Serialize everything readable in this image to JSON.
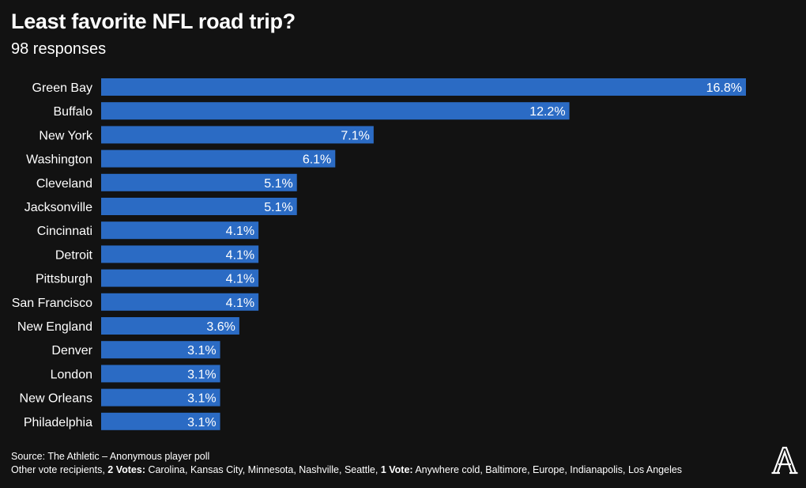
{
  "chart_data": {
    "type": "bar",
    "orientation": "horizontal",
    "title": "Least favorite NFL road trip?",
    "subtitle": "98 responses",
    "categories": [
      "Green Bay",
      "Buffalo",
      "New York",
      "Washington",
      "Cleveland",
      "Jacksonville",
      "Cincinnati",
      "Detroit",
      "Pittsburgh",
      "San Francisco",
      "New England",
      "Denver",
      "London",
      "New Orleans",
      "Philadelphia"
    ],
    "values": [
      16.8,
      12.2,
      7.1,
      6.1,
      5.1,
      5.1,
      4.1,
      4.1,
      4.1,
      4.1,
      3.6,
      3.1,
      3.1,
      3.1,
      3.1
    ],
    "value_suffix": "%",
    "xlim": [
      0,
      16.8
    ],
    "grid": false,
    "bar_color": "#2b6bc4"
  },
  "footer": {
    "source": "Source: The Athletic – Anonymous player poll",
    "other_prefix": "Other vote recipients, ",
    "two_votes_label": "2 Votes:",
    "two_votes_list": " Carolina, Kansas City, Minnesota, Nashville, Seattle, ",
    "one_vote_label": "1 Vote:",
    "one_vote_list": " Anywhere cold, Baltimore, Europe, Indianapolis, Los Angeles"
  },
  "logo": {
    "name": "The Athletic logo",
    "color": "#ffffff"
  }
}
